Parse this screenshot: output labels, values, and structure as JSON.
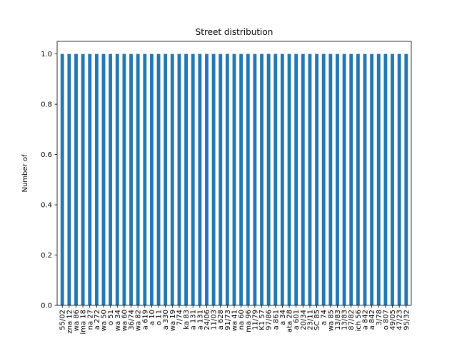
{
  "chart_data": {
    "type": "bar",
    "title": "Street distribution",
    "xlabel": "",
    "ylabel": "Number of",
    "ylim": [
      0,
      1.05
    ],
    "yticks": [
      "0.0",
      "0.2",
      "0.4",
      "0.6",
      "0.8",
      "1.0"
    ],
    "grid": false,
    "bar_color": "#1f77b4",
    "categories": [
      "55/02",
      "zna 12",
      "wa 86",
      "ima 18",
      "na 27",
      "a 272",
      "wa 50",
      "o 51",
      "wa 34",
      "wa 60",
      "36/74",
      "wa 82",
      "a 619",
      "a 10",
      "o 11",
      "a 330",
      "wa 19",
      "7/74",
      "ka 83",
      "a 131",
      "a 131",
      "24/06",
      "11/03",
      "a 628",
      "91/73",
      "wa 41",
      "na 60",
      "ma 96",
      "11/79",
      "K1 57",
      "97/86",
      "a 861",
      "a 34",
      "ata 28",
      "a 601",
      "20/34",
      "23/11",
      "SC 85",
      "a 74",
      "wa 85",
      "13/83",
      "13/83",
      "87/82",
      "ich 56",
      "a 842",
      "a 842",
      "3/78",
      "o 807",
      "49/05",
      "47/23",
      "95/32"
    ],
    "values": [
      1,
      1,
      1,
      1,
      1,
      1,
      1,
      1,
      1,
      1,
      1,
      1,
      1,
      1,
      1,
      1,
      1,
      1,
      1,
      1,
      1,
      1,
      1,
      1,
      1,
      1,
      1,
      1,
      1,
      1,
      1,
      1,
      1,
      1,
      1,
      1,
      1,
      1,
      1,
      1,
      1,
      1,
      1,
      1,
      1,
      1,
      1,
      1,
      1,
      1,
      1
    ]
  }
}
